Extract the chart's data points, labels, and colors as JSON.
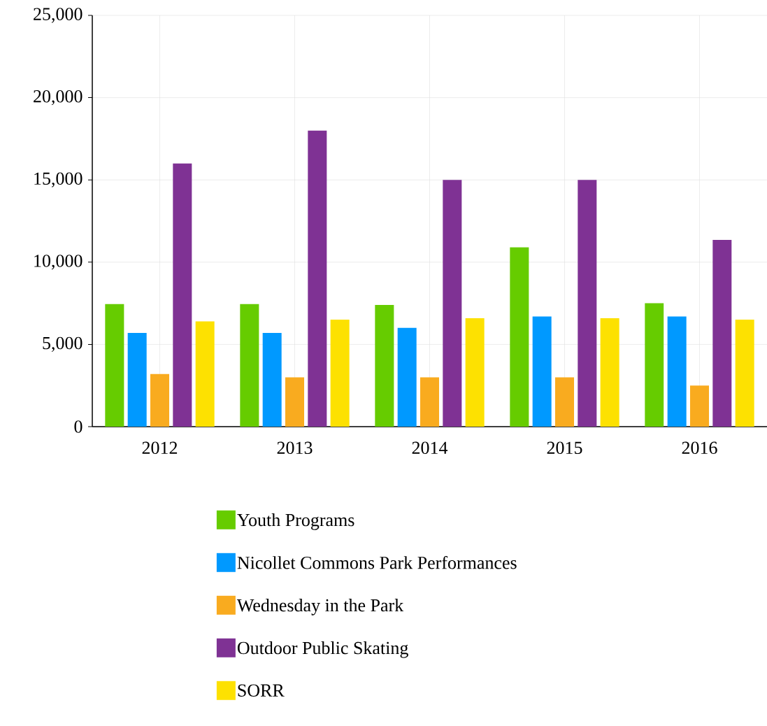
{
  "chart_data": {
    "type": "bar",
    "categories": [
      "2012",
      "2013",
      "2014",
      "2015",
      "2016"
    ],
    "series": [
      {
        "name": "Youth Programs",
        "color": "#66cc00",
        "values": [
          7450,
          7450,
          7400,
          10900,
          7500
        ]
      },
      {
        "name": "Nicollet Commons Park Performances",
        "color": "#0099ff",
        "values": [
          5700,
          5700,
          6000,
          6700,
          6700
        ]
      },
      {
        "name": "Wednesday in the Park",
        "color": "#f9ab1f",
        "values": [
          3200,
          3000,
          3000,
          3000,
          2500
        ]
      },
      {
        "name": "Outdoor Public Skating",
        "color": "#7f3294",
        "values": [
          16000,
          18000,
          15000,
          15000,
          11350
        ]
      },
      {
        "name": "SORR",
        "color": "#fde101",
        "values": [
          6400,
          6500,
          6600,
          6600,
          6500
        ]
      }
    ],
    "ylim": [
      0,
      25000
    ],
    "yticks": [
      0,
      {
        "value": 5000,
        "label": "5,000"
      },
      {
        "value": 10000,
        "label": "10,000"
      },
      {
        "value": 15000,
        "label": "15,000"
      },
      {
        "value": 20000,
        "label": "20,000"
      },
      {
        "value": 25000,
        "label": "25,000"
      }
    ],
    "grid": true,
    "legend": "bottom"
  }
}
